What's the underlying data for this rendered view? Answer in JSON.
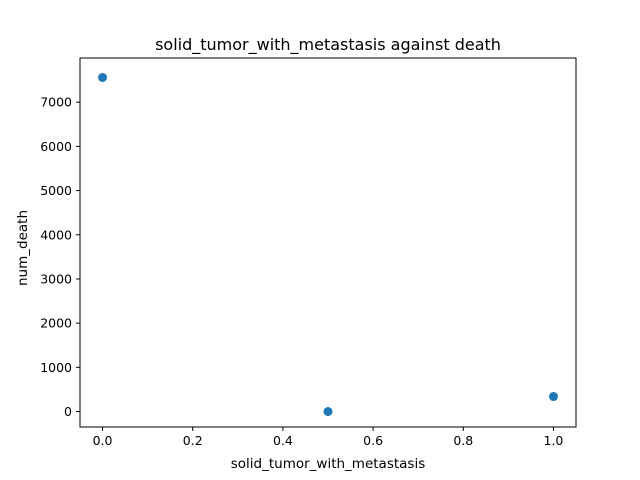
{
  "chart_data": {
    "type": "scatter",
    "title": "solid_tumor_with_metastasis against death",
    "xlabel": "solid_tumor_with_metastasis",
    "ylabel": "num_death",
    "xlim": [
      -0.05,
      1.05
    ],
    "ylim": [
      -350,
      8000
    ],
    "x_ticks": [
      0.0,
      0.2,
      0.4,
      0.6,
      0.8,
      1.0
    ],
    "x_tick_labels": [
      "0.0",
      "0.2",
      "0.4",
      "0.6",
      "0.8",
      "1.0"
    ],
    "y_ticks": [
      0,
      1000,
      2000,
      3000,
      4000,
      5000,
      6000,
      7000
    ],
    "y_tick_labels": [
      "0",
      "1000",
      "2000",
      "3000",
      "4000",
      "5000",
      "6000",
      "7000"
    ],
    "grid": false,
    "legend": "none",
    "points": [
      {
        "x": 0.0,
        "y": 7560
      },
      {
        "x": 0.5,
        "y": 0
      },
      {
        "x": 1.0,
        "y": 340
      }
    ],
    "marker_color": "#1f77b4"
  }
}
